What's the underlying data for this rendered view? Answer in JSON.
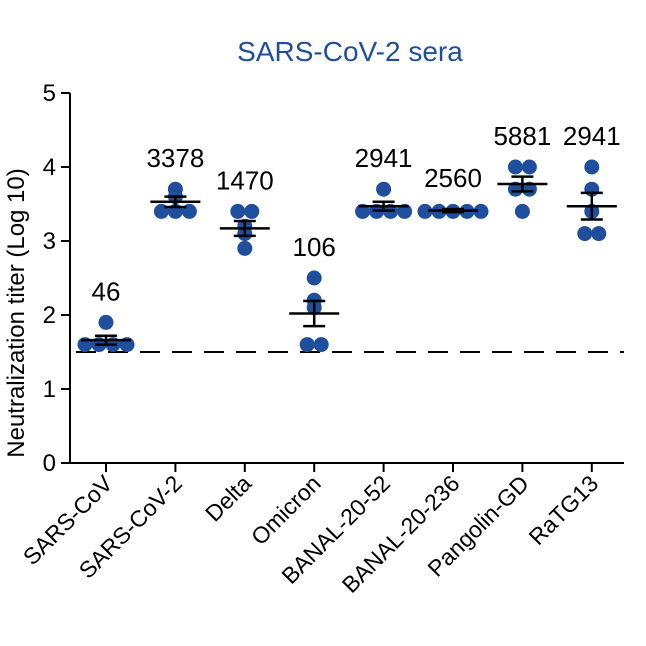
{
  "colors": {
    "title": "#1f4e9c",
    "point": "#1f4e9c",
    "axis": "#000000",
    "text": "#000000"
  },
  "chart_data": {
    "type": "scatter",
    "title": "SARS-CoV-2 sera",
    "xlabel": "",
    "ylabel": "Neutralization titer (Log 10)",
    "ylim": [
      0,
      5
    ],
    "yticks": [
      "0",
      "1",
      "2",
      "3",
      "4",
      "5"
    ],
    "detection_limit": 1.5,
    "categories": [
      "SARS-CoV",
      "SARS-CoV-2",
      "Delta",
      "Omicron",
      "BANAL-20-52",
      "BANAL-20-236",
      "Pangolin-GD",
      "RaTG13"
    ],
    "labels": [
      "46",
      "3378",
      "1470",
      "106",
      "2941",
      "2560",
      "5881",
      "2941"
    ],
    "series": [
      {
        "name": "SARS-CoV",
        "values": [
          1.9,
          1.6,
          1.6,
          1.6,
          1.6
        ],
        "mean": 1.66,
        "sem": 0.06
      },
      {
        "name": "SARS-CoV-2",
        "values": [
          3.7,
          3.6,
          3.4,
          3.4,
          3.4
        ],
        "mean": 3.53,
        "sem": 0.07
      },
      {
        "name": "Delta",
        "values": [
          3.4,
          3.4,
          3.2,
          3.1,
          2.9
        ],
        "mean": 3.17,
        "sem": 0.1
      },
      {
        "name": "Omicron",
        "values": [
          2.5,
          2.2,
          2.1,
          1.6,
          1.6
        ],
        "mean": 2.02,
        "sem": 0.17
      },
      {
        "name": "BANAL-20-52",
        "values": [
          3.7,
          3.4,
          3.4,
          3.4,
          3.4
        ],
        "mean": 3.47,
        "sem": 0.06
      },
      {
        "name": "BANAL-20-236",
        "values": [
          3.4,
          3.4,
          3.4,
          3.4,
          3.4
        ],
        "mean": 3.41,
        "sem": 0.02
      },
      {
        "name": "Pangolin-GD",
        "values": [
          4.0,
          4.0,
          3.7,
          3.7,
          3.4
        ],
        "mean": 3.77,
        "sem": 0.1
      },
      {
        "name": "RaTG13",
        "values": [
          4.0,
          3.7,
          3.4,
          3.1,
          3.1
        ],
        "mean": 3.47,
        "sem": 0.18
      }
    ]
  }
}
